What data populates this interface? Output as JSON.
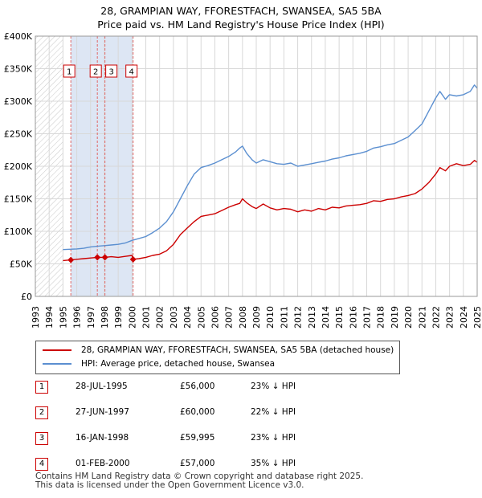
{
  "title_line1": "28, GRAMPIAN WAY, FFORESTFACH, SWANSEA, SA5 5BA",
  "title_line2": "Price paid vs. HM Land Registry's House Price Index (HPI)",
  "legend": {
    "property": "28, GRAMPIAN WAY, FFORESTFACH, SWANSEA, SA5 5BA (detached house)",
    "hpi": "HPI: Average price, detached house, Swansea"
  },
  "colors": {
    "property": "#cc0000",
    "hpi": "#5b8fd0",
    "shade": "#dde6f4",
    "grid": "#d8d8d8"
  },
  "sales": [
    {
      "num": "1",
      "date": "28-JUL-1995",
      "price": "£56,000",
      "hpi": "23% ↓ HPI"
    },
    {
      "num": "2",
      "date": "27-JUN-1997",
      "price": "£60,000",
      "hpi": "22% ↓ HPI"
    },
    {
      "num": "3",
      "date": "16-JAN-1998",
      "price": "£59,995",
      "hpi": "23% ↓ HPI"
    },
    {
      "num": "4",
      "date": "01-FEB-2000",
      "price": "£57,000",
      "hpi": "35% ↓ HPI"
    }
  ],
  "footer_line1": "Contains HM Land Registry data © Crown copyright and database right 2025.",
  "footer_line2": "This data is licensed under the Open Government Licence v3.0.",
  "chart_data": {
    "type": "line",
    "title": "Price paid vs. HM Land Registry's House Price Index (HPI)",
    "xlim": [
      1993,
      2025
    ],
    "ylim": [
      0,
      400000
    ],
    "y_ticks": [
      0,
      50000,
      100000,
      150000,
      200000,
      250000,
      300000,
      350000,
      400000
    ],
    "y_tick_labels": [
      "£0",
      "£50K",
      "£100K",
      "£150K",
      "£200K",
      "£250K",
      "£300K",
      "£350K",
      "£400K"
    ],
    "x_ticks": [
      1993,
      1994,
      1995,
      1996,
      1997,
      1998,
      1999,
      2000,
      2001,
      2002,
      2003,
      2004,
      2005,
      2006,
      2007,
      2008,
      2009,
      2010,
      2011,
      2012,
      2013,
      2014,
      2015,
      2016,
      2017,
      2018,
      2019,
      2020,
      2021,
      2022,
      2023,
      2024,
      2025
    ],
    "hatched_before": 1995.0,
    "shaded_ranges": [
      [
        1995.57,
        2000.08
      ]
    ],
    "sale_markers": [
      {
        "label": "1",
        "x": 1995.57,
        "y": 56000
      },
      {
        "label": "2",
        "x": 1997.49,
        "y": 60000
      },
      {
        "label": "3",
        "x": 1998.04,
        "y": 59995
      },
      {
        "label": "4",
        "x": 2000.08,
        "y": 57000
      }
    ],
    "series": [
      {
        "name": "28, GRAMPIAN WAY, FFORESTFACH, SWANSEA, SA5 5BA (detached house)",
        "color": "#cc0000",
        "x": [
          1995.0,
          1995.57,
          1996.0,
          1996.5,
          1997.0,
          1997.49,
          1998.04,
          1998.5,
          1999.0,
          1999.5,
          2000.0,
          2000.08,
          2000.5,
          2001.0,
          2001.5,
          2002.0,
          2002.5,
          2003.0,
          2003.5,
          2004.0,
          2004.5,
          2005.0,
          2005.5,
          2006.0,
          2006.5,
          2007.0,
          2007.5,
          2007.8,
          2008.0,
          2008.3,
          2008.7,
          2009.0,
          2009.5,
          2010.0,
          2010.5,
          2011.0,
          2011.5,
          2012.0,
          2012.5,
          2013.0,
          2013.5,
          2014.0,
          2014.5,
          2015.0,
          2015.5,
          2016.0,
          2016.5,
          2017.0,
          2017.5,
          2018.0,
          2018.5,
          2019.0,
          2019.5,
          2020.0,
          2020.5,
          2021.0,
          2021.5,
          2022.0,
          2022.3,
          2022.7,
          2023.0,
          2023.5,
          2024.0,
          2024.5,
          2024.8,
          2025.0
        ],
        "y": [
          55000,
          56000,
          57000,
          58000,
          59000,
          60000,
          59995,
          61000,
          60000,
          61500,
          63000,
          57000,
          58000,
          60000,
          63000,
          65000,
          70000,
          80000,
          95000,
          105000,
          115000,
          123000,
          125000,
          127000,
          132000,
          137000,
          141000,
          143000,
          150000,
          144000,
          138000,
          135000,
          142000,
          136000,
          133000,
          135000,
          134000,
          130000,
          133000,
          131000,
          135000,
          133000,
          137000,
          136000,
          139000,
          140000,
          141000,
          143000,
          147000,
          146000,
          149000,
          150000,
          153000,
          155000,
          158000,
          165000,
          175000,
          188000,
          198000,
          193000,
          200000,
          204000,
          201000,
          203000,
          209000,
          206000
        ]
      },
      {
        "name": "HPI: Average price, detached house, Swansea",
        "color": "#5b8fd0",
        "x": [
          1995.0,
          1995.5,
          1996.0,
          1996.5,
          1997.0,
          1997.5,
          1998.0,
          1998.5,
          1999.0,
          1999.5,
          2000.0,
          2000.5,
          2001.0,
          2001.5,
          2002.0,
          2002.5,
          2003.0,
          2003.5,
          2004.0,
          2004.5,
          2005.0,
          2005.5,
          2006.0,
          2006.5,
          2007.0,
          2007.5,
          2007.8,
          2008.0,
          2008.3,
          2008.7,
          2009.0,
          2009.5,
          2010.0,
          2010.5,
          2011.0,
          2011.5,
          2012.0,
          2012.5,
          2013.0,
          2013.5,
          2014.0,
          2014.5,
          2015.0,
          2015.5,
          2016.0,
          2016.5,
          2017.0,
          2017.5,
          2018.0,
          2018.5,
          2019.0,
          2019.5,
          2020.0,
          2020.5,
          2021.0,
          2021.5,
          2022.0,
          2022.3,
          2022.7,
          2023.0,
          2023.5,
          2024.0,
          2024.5,
          2024.8,
          2025.0
        ],
        "y": [
          72000,
          72500,
          73000,
          74000,
          76000,
          77000,
          78000,
          79000,
          80000,
          82000,
          86000,
          89000,
          92000,
          98000,
          105000,
          115000,
          130000,
          150000,
          170000,
          188000,
          198000,
          201000,
          205000,
          210000,
          215000,
          222000,
          228000,
          231000,
          220000,
          210000,
          205000,
          210000,
          207000,
          204000,
          203000,
          205000,
          200000,
          202000,
          204000,
          206000,
          208000,
          211000,
          213000,
          216000,
          218000,
          220000,
          223000,
          228000,
          230000,
          233000,
          235000,
          240000,
          245000,
          255000,
          265000,
          285000,
          305000,
          315000,
          303000,
          310000,
          308000,
          310000,
          315000,
          325000,
          320000
        ]
      }
    ]
  }
}
